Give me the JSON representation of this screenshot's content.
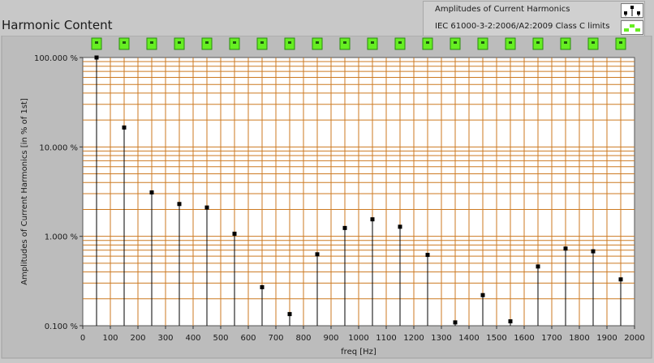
{
  "panel": {
    "title": "Harmonic Content"
  },
  "legend": {
    "items": [
      {
        "label": "Amplitudes of Current Harmonics",
        "icon": "stem-marker-icon"
      },
      {
        "label": "IEC 61000-3-2:2006/A2:2009 Class C limits",
        "icon": "green-dash-icon"
      }
    ]
  },
  "colors": {
    "plot_background": "#ffffff",
    "grid": "#cc7a22",
    "limit_marker": "#66ee22",
    "stem": "#000000",
    "frame": "#c8c8c8"
  },
  "chart_data": {
    "type": "scatter",
    "style": "stem",
    "xlabel": "freq [Hz]",
    "ylabel": "Amplitudes of Current Harmonics [in % of 1st]",
    "xlim": [
      0,
      2000
    ],
    "ylim": [
      0.1,
      100
    ],
    "y_scale": "log",
    "grid": true,
    "legend_position": "top-right",
    "x_ticks": [
      "0",
      "100",
      "200",
      "300",
      "400",
      "500",
      "600",
      "700",
      "800",
      "900",
      "1000",
      "1100",
      "1200",
      "1300",
      "1400",
      "1500",
      "1600",
      "1700",
      "1800",
      "1900",
      "2000"
    ],
    "y_ticks": [
      "0.100 %",
      "1.000 %",
      "10.000 %",
      "100.000 %"
    ],
    "series": [
      {
        "name": "Amplitudes of Current Harmonics",
        "x": [
          50,
          150,
          250,
          350,
          450,
          550,
          650,
          750,
          850,
          950,
          1050,
          1150,
          1250,
          1350,
          1450,
          1550,
          1650,
          1750,
          1850,
          1950
        ],
        "y": [
          100,
          16.5,
          3.1,
          2.3,
          2.1,
          1.07,
          0.27,
          0.135,
          0.63,
          1.24,
          1.55,
          1.28,
          0.62,
          0.109,
          0.22,
          0.112,
          0.46,
          0.73,
          0.68,
          0.33
        ]
      },
      {
        "name": "IEC 61000-3-2:2006/A2:2009 Class C limits",
        "x": [
          50,
          150,
          250,
          350,
          450,
          550,
          650,
          750,
          850,
          950,
          1050,
          1150,
          1250,
          1350,
          1450,
          1550,
          1650,
          1750,
          1850,
          1950
        ],
        "y": [
          100,
          100,
          100,
          100,
          100,
          100,
          100,
          100,
          100,
          100,
          100,
          100,
          100,
          100,
          100,
          100,
          100,
          100,
          100,
          100
        ]
      }
    ]
  }
}
